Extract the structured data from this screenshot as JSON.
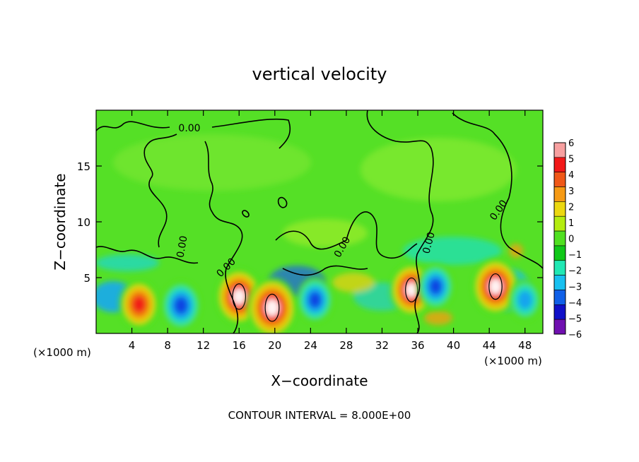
{
  "chart_data": {
    "type": "heatmap",
    "title": "vertical velocity",
    "xlabel": "X−coordinate",
    "ylabel": "Z−coordinate",
    "x_unit_left": "(×1000 m)",
    "x_unit_right": "(×1000 m)",
    "xlim": [
      0,
      50
    ],
    "ylim": [
      0,
      20
    ],
    "x_ticks": [
      4,
      8,
      12,
      16,
      20,
      24,
      28,
      32,
      36,
      40,
      44,
      48
    ],
    "x_tick_labels": [
      "4",
      "8",
      "12",
      "16",
      "20",
      "24",
      "28",
      "32",
      "36",
      "40",
      "44",
      "48"
    ],
    "y_ticks": [
      5,
      10,
      15
    ],
    "y_tick_labels": [
      "5",
      "10",
      "15"
    ],
    "colorbar": {
      "range": [
        -6,
        6
      ],
      "labels": [
        "6",
        "5",
        "4",
        "3",
        "2",
        "1",
        "0",
        "−1",
        "−2",
        "−3",
        "−4",
        "−5",
        "−6"
      ],
      "colors": [
        "#f7a0a0",
        "#f21818",
        "#f05818",
        "#f69a14",
        "#ecd810",
        "#b4ec10",
        "#50e020",
        "#10c818",
        "#20e8b4",
        "#18c0f0",
        "#1060e8",
        "#1010c8",
        "#7010b0"
      ]
    },
    "contour_labels": [
      "0.00",
      "0.00",
      "0.00",
      "0.00",
      "0.00",
      "0.00"
    ],
    "features": [
      {
        "x": 4.8,
        "z": 2.6,
        "w": 5
      },
      {
        "x": 9.5,
        "z": 2.5,
        "w": -5
      },
      {
        "x": 16.0,
        "z": 3.3,
        "w": 7
      },
      {
        "x": 19.7,
        "z": 2.3,
        "w": 8
      },
      {
        "x": 24.5,
        "z": 3.0,
        "w": -4
      },
      {
        "x": 35.3,
        "z": 3.9,
        "w": 6
      },
      {
        "x": 38.0,
        "z": 4.2,
        "w": -4
      },
      {
        "x": 44.7,
        "z": 4.2,
        "w": 7
      },
      {
        "x": 48.0,
        "z": 3.0,
        "w": -3
      }
    ],
    "grid": false
  },
  "footer": {
    "contour_interval": "CONTOUR INTERVAL = 8.000E+00"
  }
}
